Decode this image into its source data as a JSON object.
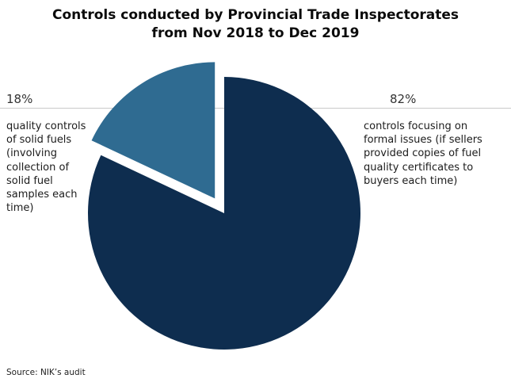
{
  "chart_data": {
    "type": "pie",
    "title_lines": [
      "Controls conducted by Provincial Trade Inspectorates",
      "from Nov 2018 to Dec 2019"
    ],
    "slices": [
      {
        "label": "18%",
        "value": 18,
        "exploded": true,
        "color": "#2f6b91",
        "description_lines": [
          "quality controls",
          "of solid fuels",
          "(involving",
          "collection of",
          "solid fuel",
          "samples each",
          "time)"
        ]
      },
      {
        "label": "82%",
        "value": 82,
        "exploded": false,
        "color": "#0e2d4f",
        "description_lines": [
          "controls focusing on",
          "formal issues (if sellers",
          "provided copies of fuel",
          "quality certificates to",
          "buyers each time)"
        ]
      }
    ],
    "source": "Source: NIK’s audit"
  }
}
